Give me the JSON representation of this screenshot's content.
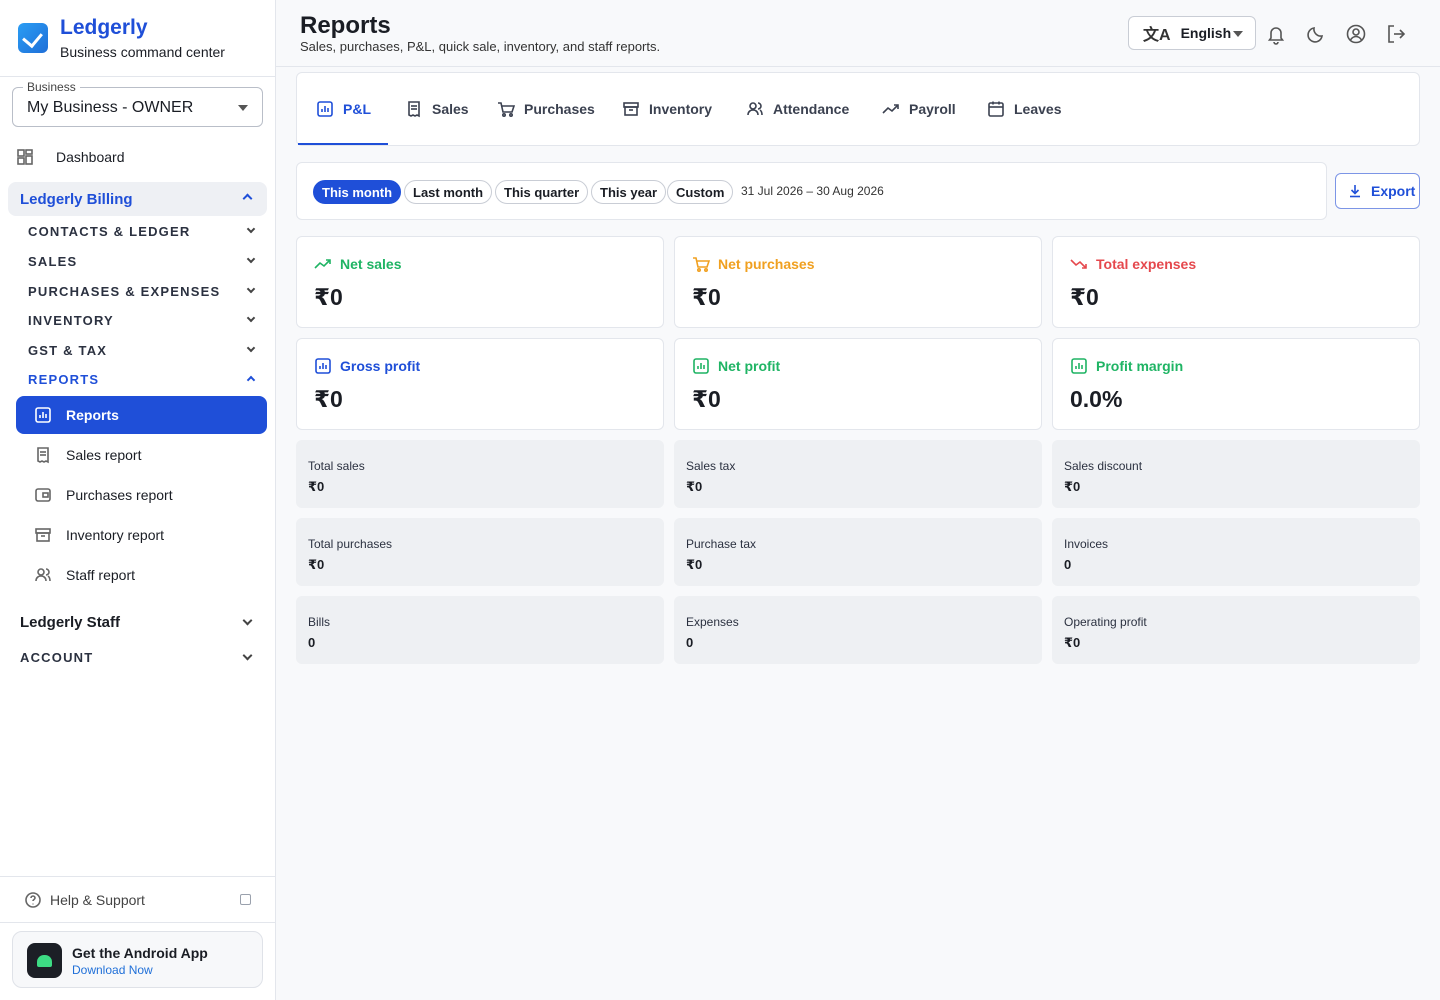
{
  "brand": {
    "name": "Ledgerly",
    "tagline": "Business command center"
  },
  "business": {
    "label": "Business",
    "value": "My Business - OWNER"
  },
  "sidebar": {
    "dashboard": "Dashboard",
    "billing_group": "Ledgerly Billing",
    "sections": [
      "CONTACTS & LEDGER",
      "SALES",
      "PURCHASES & EXPENSES",
      "INVENTORY",
      "GST & TAX",
      "REPORTS"
    ],
    "report_items": [
      "Reports",
      "Sales report",
      "Purchases report",
      "Inventory report",
      "Staff report"
    ],
    "staff_group": "Ledgerly Staff",
    "account": "ACCOUNT",
    "help": "Help & Support",
    "android_title": "Get the Android App",
    "android_link": "Download Now"
  },
  "header": {
    "title": "Reports",
    "subtitle": "Sales, purchases, P&L, quick sale, inventory, and staff reports.",
    "language": "English"
  },
  "tabs": [
    "P&L",
    "Sales",
    "Purchases",
    "Inventory",
    "Attendance",
    "Payroll",
    "Leaves"
  ],
  "filters": {
    "chips": [
      "This month",
      "Last month",
      "This quarter",
      "This year",
      "Custom"
    ],
    "range": "31 Jul 2026 – 30 Aug 2026",
    "export": "Export"
  },
  "kpis": [
    {
      "label": "Net sales",
      "value": "₹0",
      "color": "#1fb464"
    },
    {
      "label": "Net purchases",
      "value": "₹0",
      "color": "#f0a020"
    },
    {
      "label": "Total expenses",
      "value": "₹0",
      "color": "#e5484d"
    },
    {
      "label": "Gross profit",
      "value": "₹0",
      "color": "#1f4fd8"
    },
    {
      "label": "Net profit",
      "value": "₹0",
      "color": "#1fb464"
    },
    {
      "label": "Profit margin",
      "value": "0.0%",
      "color": "#1fb464"
    }
  ],
  "stats": [
    {
      "label": "Total sales",
      "value": "₹0"
    },
    {
      "label": "Sales tax",
      "value": "₹0"
    },
    {
      "label": "Sales discount",
      "value": "₹0"
    },
    {
      "label": "Total purchases",
      "value": "₹0"
    },
    {
      "label": "Purchase tax",
      "value": "₹0"
    },
    {
      "label": "Invoices",
      "value": "0"
    },
    {
      "label": "Bills",
      "value": "0"
    },
    {
      "label": "Expenses",
      "value": "0"
    },
    {
      "label": "Operating profit",
      "value": "₹0"
    }
  ]
}
